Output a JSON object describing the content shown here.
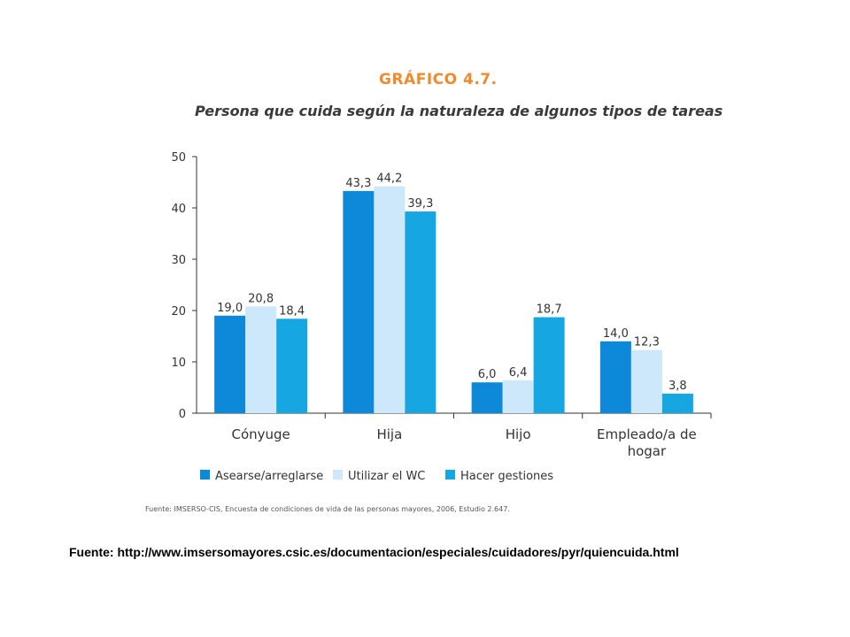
{
  "header": {
    "grafico_label": "GRÁFICO 4.7.",
    "title": "Persona que cuida según la naturaleza de algunos tipos de tareas"
  },
  "chart_data": {
    "type": "bar",
    "categories": [
      "Cónyuge",
      "Hija",
      "Hijo",
      "Empleado/a de hogar"
    ],
    "series": [
      {
        "name": "Asearse/arreglarse",
        "color": "#0e88d8",
        "values": [
          19.0,
          43.3,
          6.0,
          14.0
        ],
        "labels": [
          "19,0",
          "43,3",
          "6,0",
          "14,0"
        ]
      },
      {
        "name": "Utilizar el WC",
        "color": "#cde8fb",
        "values": [
          20.8,
          44.2,
          6.4,
          12.3
        ],
        "labels": [
          "20,8",
          "44,2",
          "6,4",
          "12,3"
        ]
      },
      {
        "name": "Hacer gestiones",
        "color": "#16a6e2",
        "values": [
          18.4,
          39.3,
          18.7,
          3.8
        ],
        "labels": [
          "18,4",
          "39,3",
          "18,7",
          "3,8"
        ]
      }
    ],
    "yticks": [
      0,
      10,
      20,
      30,
      40,
      50
    ],
    "ylim": [
      0,
      50
    ],
    "legend_position": "bottom",
    "grid": false
  },
  "footer": {
    "source_note": "Fuente: IMSERSO-CIS, Encuesta de condiciones de vida de las personas mayores, 2006, Estudio 2.647.",
    "source_url": "Fuente: http://www.imsersomayores.csic.es/documentacion/especiales/cuidadores/pyr/quiencuida.html"
  }
}
